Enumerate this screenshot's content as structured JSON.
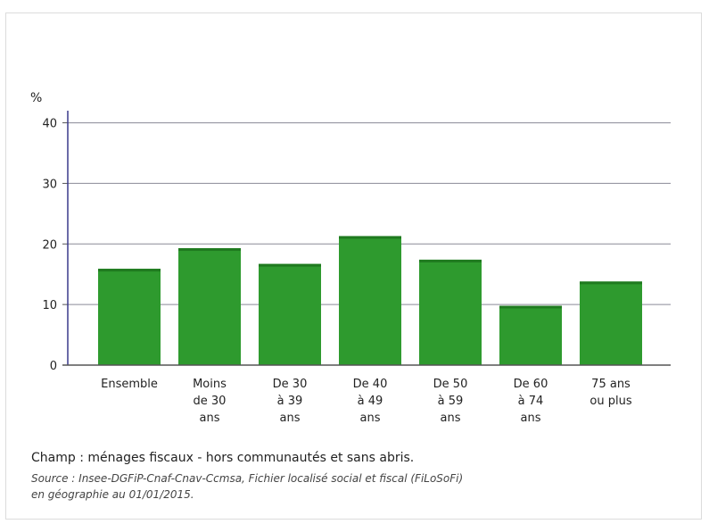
{
  "chart_data": {
    "type": "bar",
    "ylabel": "%",
    "ylim": [
      0,
      42
    ],
    "yticks": [
      0,
      10,
      20,
      30,
      40
    ],
    "grid": true,
    "bar_color": "#2e9a2e",
    "categories": [
      [
        "Ensemble"
      ],
      [
        "Moins",
        "de 30",
        "ans"
      ],
      [
        "De 30",
        "à 39",
        "ans"
      ],
      [
        "De 40",
        "à 49",
        "ans"
      ],
      [
        "De 50",
        "à 59",
        "ans"
      ],
      [
        "De 60",
        "à 74",
        "ans"
      ],
      [
        "75 ans",
        "ou plus"
      ]
    ],
    "values": [
      15.9,
      19.3,
      16.7,
      21.3,
      17.4,
      9.8,
      13.8
    ]
  },
  "notes": {
    "champ": "Champ : ménages fiscaux - hors communautés et sans abris.",
    "source_line1": "Source : Insee-DGFiP-Cnaf-Cnav-Ccmsa, Fichier localisé social et fiscal (FiLoSoFi)",
    "source_line2": "en géographie au 01/01/2015."
  }
}
